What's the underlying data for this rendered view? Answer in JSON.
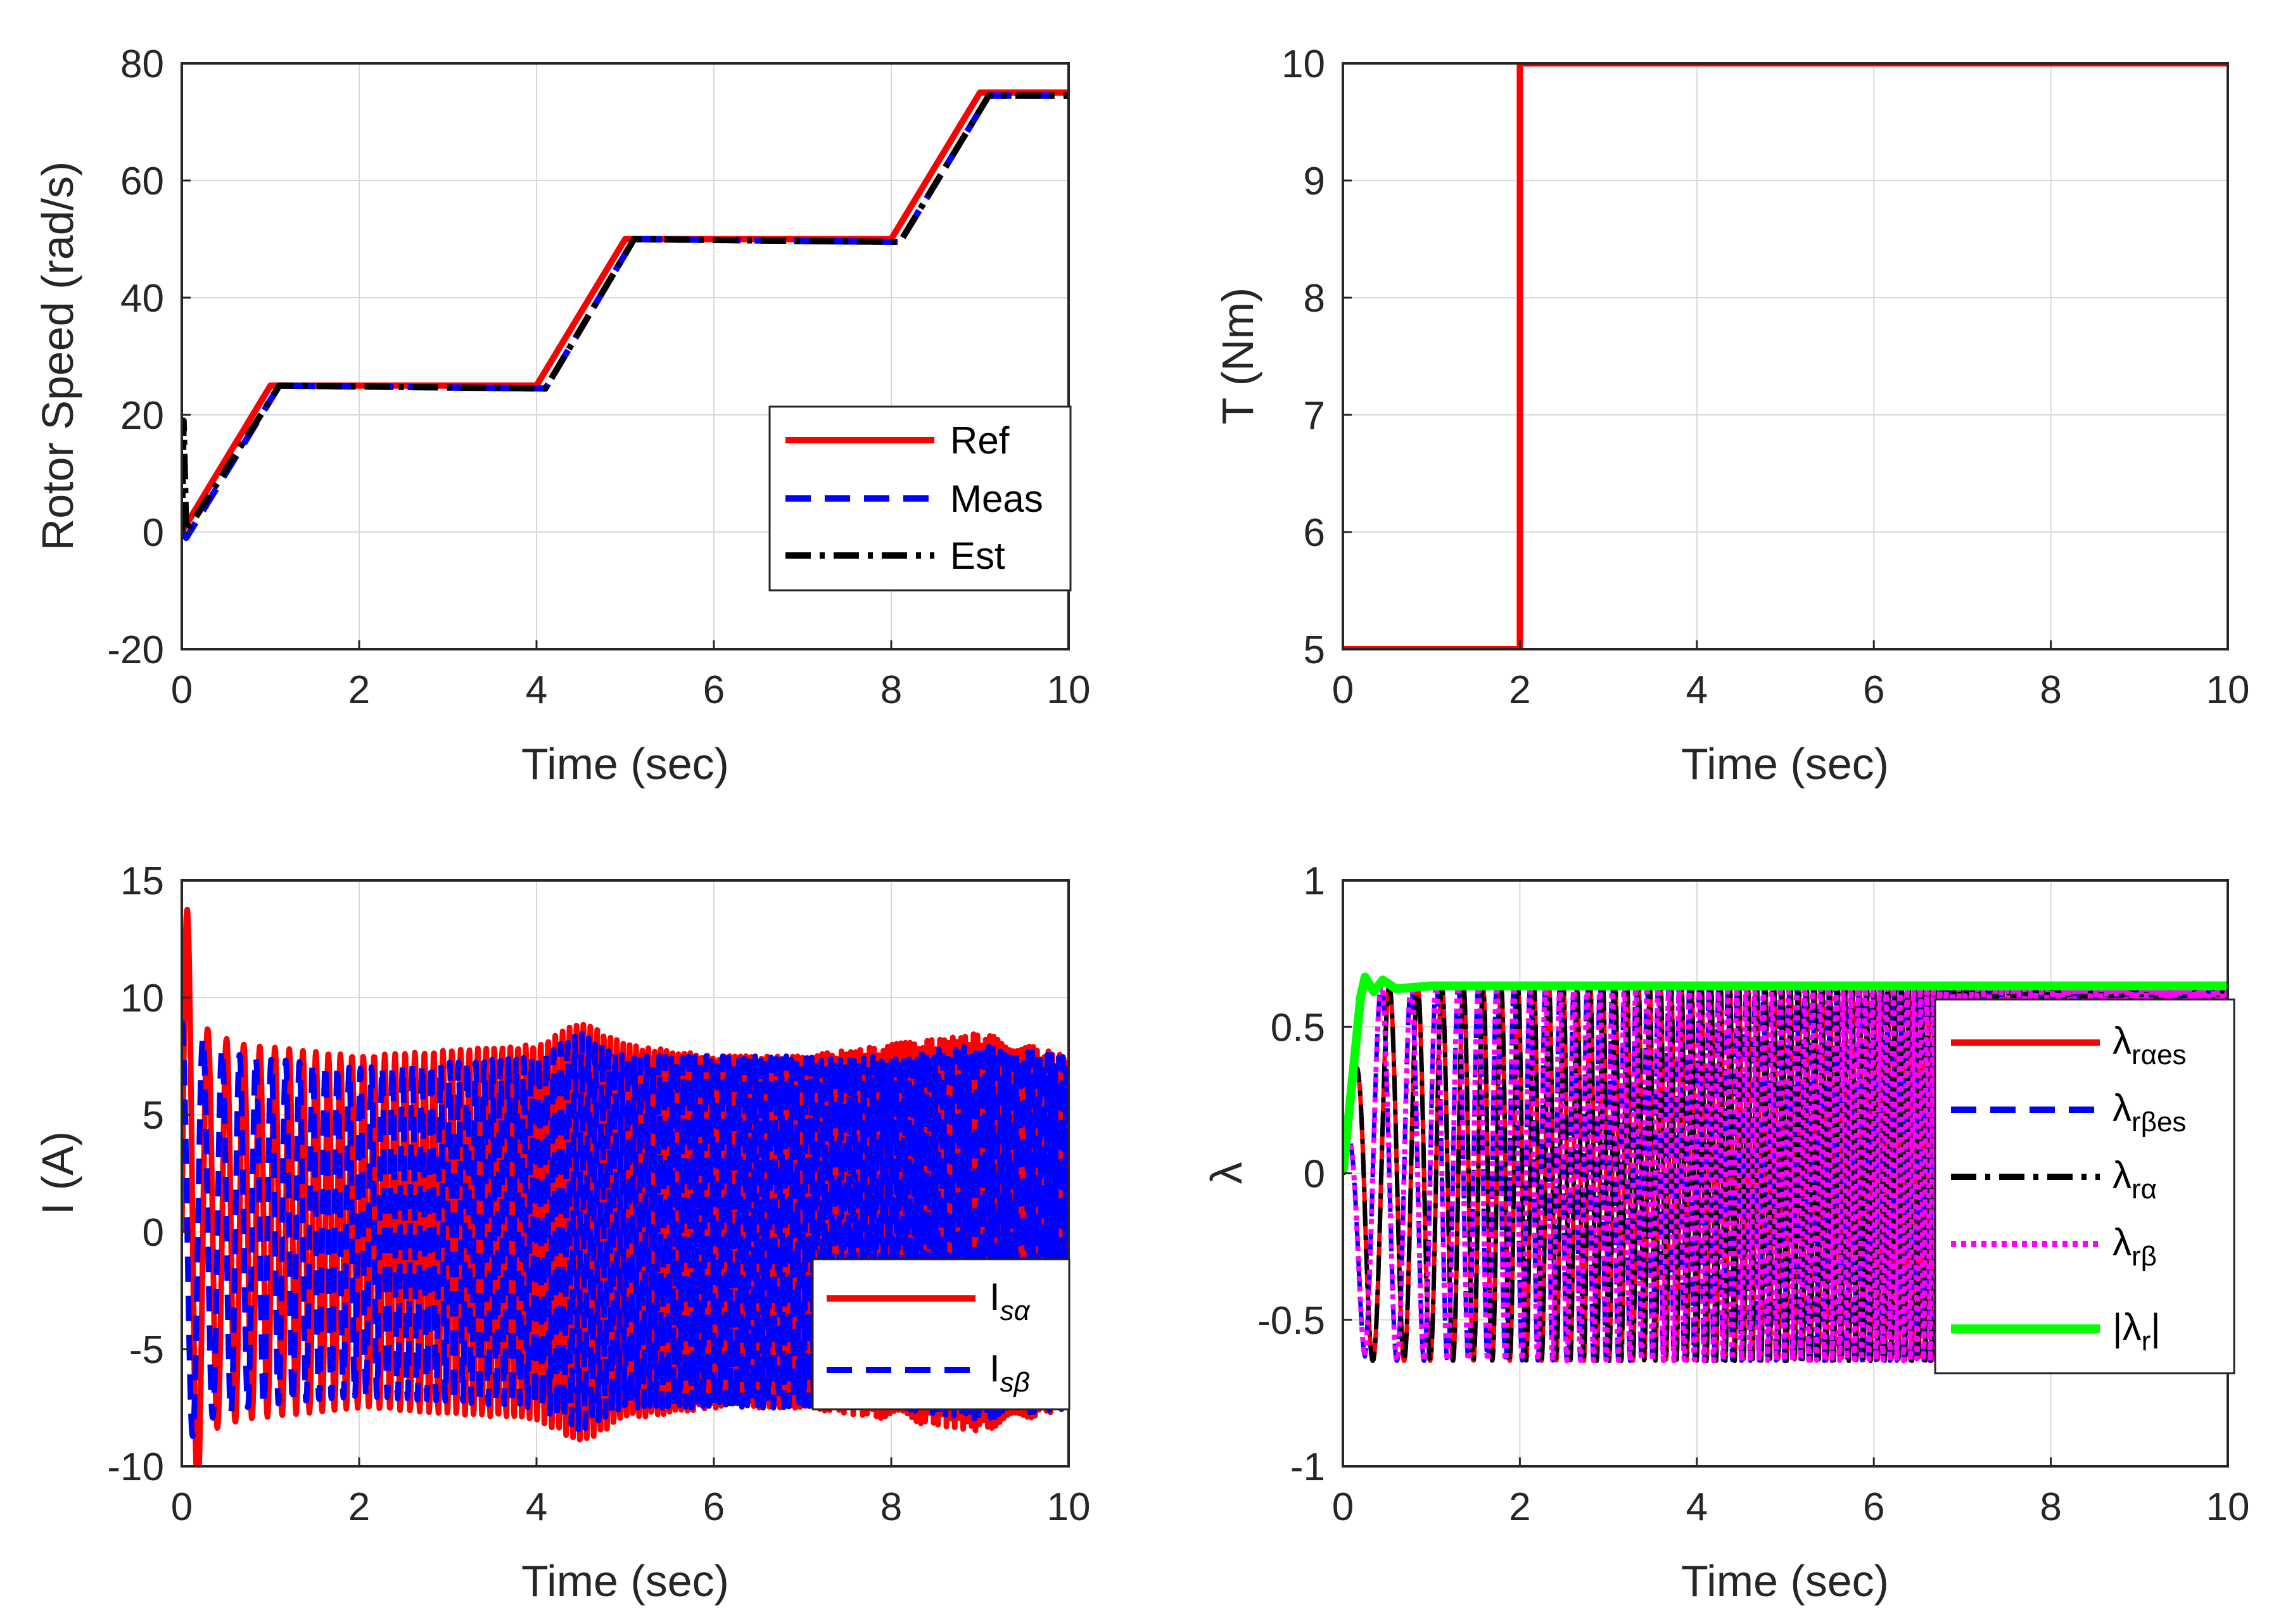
{
  "chart_data": [
    {
      "type": "line",
      "id": "speed",
      "xlabel": "Time (sec)",
      "ylabel": "Rotor Speed (rad/s)",
      "xlim": [
        0,
        10
      ],
      "ylim": [
        -20,
        80
      ],
      "xticks": [
        "0",
        "2",
        "4",
        "6",
        "8",
        "10"
      ],
      "yticks": [
        "-20",
        "0",
        "20",
        "40",
        "60",
        "80"
      ],
      "grid": true,
      "legend_position": "bottom-right",
      "series": [
        {
          "name": "Ref",
          "color": "#ff0000",
          "style": "solid",
          "x": [
            0,
            1,
            4,
            5,
            8,
            9,
            10
          ],
          "y": [
            0,
            25,
            25,
            50,
            50,
            75,
            75
          ]
        },
        {
          "name": "Meas",
          "color": "#0000ff",
          "style": "dashed",
          "x": [
            0,
            0.05,
            1.1,
            4.1,
            5.1,
            8.1,
            9.1,
            10
          ],
          "y": [
            0,
            -1,
            25,
            24.5,
            50,
            49.5,
            74.5,
            74.5
          ]
        },
        {
          "name": "Est",
          "color": "#000000",
          "style": "dashdot",
          "x": [
            0,
            0.02,
            0.05,
            1.1,
            4.1,
            5.1,
            8.1,
            9.1,
            10
          ],
          "y": [
            0,
            19,
            0,
            25,
            24.5,
            50,
            49.5,
            74.5,
            74.5
          ]
        }
      ],
      "legend_entries": [
        "Ref",
        "Meas",
        "Est"
      ]
    },
    {
      "type": "line",
      "id": "torque",
      "xlabel": "Time (sec)",
      "ylabel": "T (Nm)",
      "xlim": [
        0,
        10
      ],
      "ylim": [
        5,
        10
      ],
      "xticks": [
        "0",
        "2",
        "4",
        "6",
        "8",
        "10"
      ],
      "yticks": [
        "5",
        "6",
        "7",
        "8",
        "9",
        "10"
      ],
      "grid": true,
      "series": [
        {
          "name": "T",
          "color": "#ff0000",
          "style": "solid",
          "x": [
            0,
            2,
            2,
            10
          ],
          "y": [
            5,
            5,
            10,
            10
          ]
        }
      ]
    },
    {
      "type": "line",
      "id": "current",
      "xlabel": "Time (sec)",
      "ylabel": "I (A)",
      "xlim": [
        0,
        10
      ],
      "ylim": [
        -10,
        15
      ],
      "xticks": [
        "0",
        "2",
        "4",
        "6",
        "8",
        "10"
      ],
      "yticks": [
        "-10",
        "-5",
        "0",
        "5",
        "10",
        "15"
      ],
      "grid": true,
      "legend_position": "bottom-right",
      "series": [
        {
          "name": "I_sα",
          "color": "#ff0000",
          "style": "solid",
          "envelope_x": [
            0,
            0.05,
            0.3,
            0.7,
            2,
            4,
            4.5,
            5,
            6,
            7,
            8,
            9,
            10
          ],
          "envelope_amp": [
            14,
            14,
            8.5,
            8,
            7.5,
            8,
            9,
            8,
            7.5,
            7.5,
            8,
            8.5,
            7.5
          ]
        },
        {
          "name": "I_sβ",
          "color": "#0000ff",
          "style": "dashed",
          "envelope_x": [
            0,
            0.05,
            0.3,
            0.7,
            2,
            4,
            4.5,
            5,
            6,
            7,
            8,
            9,
            10
          ],
          "envelope_amp": [
            9,
            9,
            8,
            7.5,
            7,
            7.5,
            8.5,
            7.5,
            7.5,
            7.5,
            7.5,
            8,
            7.5
          ]
        }
      ],
      "legend_entries": [
        {
          "main": "I",
          "sub": "sα"
        },
        {
          "main": "I",
          "sub": "sβ"
        }
      ]
    },
    {
      "type": "line",
      "id": "flux",
      "xlabel": "Time (sec)",
      "ylabel": "λ",
      "xlim": [
        0,
        10
      ],
      "ylim": [
        -1,
        1
      ],
      "xticks": [
        "0",
        "2",
        "4",
        "6",
        "8",
        "10"
      ],
      "yticks": [
        "-1",
        "-0.5",
        "0",
        "0.5",
        "1"
      ],
      "grid": true,
      "legend_position": "top-right",
      "series": [
        {
          "name": "λ_rαes",
          "color": "#ff0000",
          "style": "solid"
        },
        {
          "name": "λ_rβes",
          "color": "#0000ff",
          "style": "dashed"
        },
        {
          "name": "λ_rα",
          "color": "#000000",
          "style": "dashdot"
        },
        {
          "name": "λ_rβ",
          "color": "#ff00ff",
          "style": "dotted"
        },
        {
          "name": "|λ_r|",
          "color": "#00ff00",
          "style": "solid",
          "x": [
            0,
            0.1,
            0.2,
            0.25,
            0.35,
            0.45,
            0.6,
            1,
            10
          ],
          "y": [
            0,
            0.3,
            0.6,
            0.67,
            0.62,
            0.66,
            0.63,
            0.64,
            0.64
          ]
        }
      ],
      "amplitude": 0.64,
      "legend_entries": [
        {
          "main": "λ",
          "sub": "rαes"
        },
        {
          "main": "λ",
          "sub": "rβes"
        },
        {
          "main": "λ",
          "sub": "rα"
        },
        {
          "main": "λ",
          "sub": "rβ"
        },
        {
          "pre": "|λ",
          "sub": "r",
          "post": "|"
        }
      ]
    }
  ]
}
